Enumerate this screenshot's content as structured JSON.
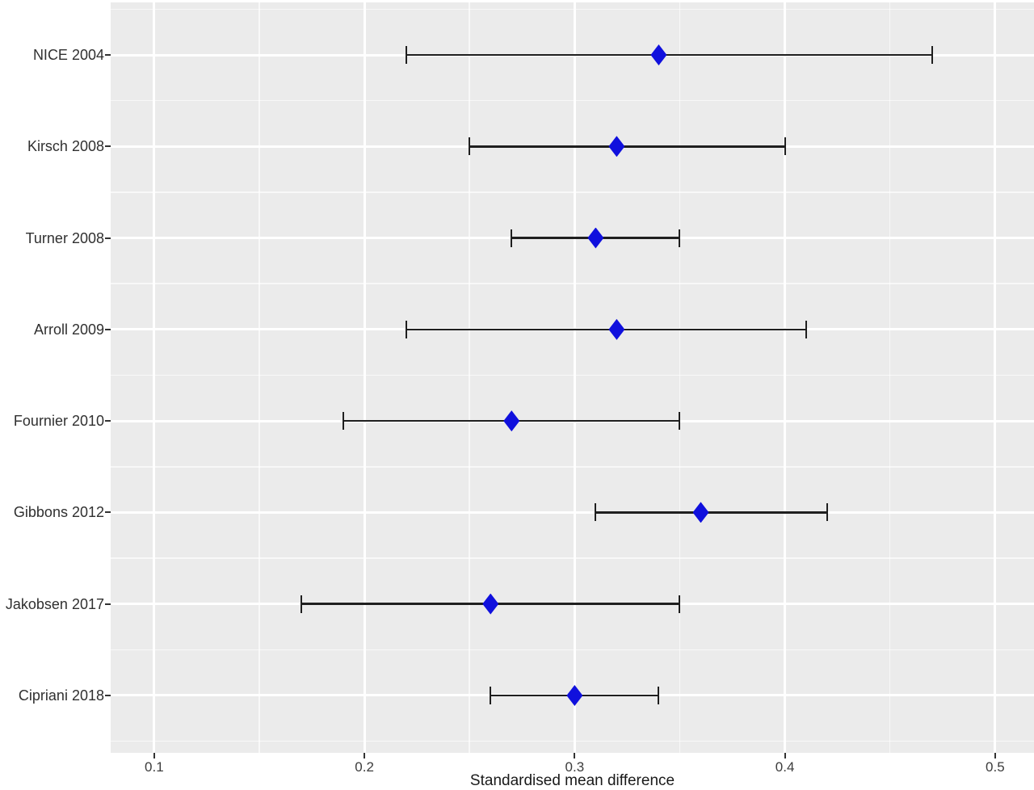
{
  "chart_data": {
    "type": "scatter",
    "subtype": "forest-plot",
    "title": "",
    "xlabel": "Standardised mean difference",
    "ylabel": "",
    "marker": "diamond",
    "legend": "none",
    "grid": "major and minor white gridlines on gray panel",
    "xlim": [
      0.0793,
      0.5185
    ],
    "x_ticks": [
      0.1,
      0.2,
      0.3,
      0.4,
      0.5
    ],
    "x_tick_labels": [
      "0.1",
      "0.2",
      "0.3",
      "0.4",
      "0.5"
    ],
    "x_minor_ticks": [
      0.15,
      0.25,
      0.35,
      0.45
    ],
    "categories": [
      "NICE 2004",
      "Kirsch 2008",
      "Turner 2008",
      "Arroll 2009",
      "Fournier 2010",
      "Gibbons 2012",
      "Jakobsen 2017",
      "Cipriani 2018"
    ],
    "studies": [
      {
        "label": "NICE 2004",
        "smd": 0.34,
        "ci_low": 0.22,
        "ci_high": 0.47
      },
      {
        "label": "Kirsch 2008",
        "smd": 0.32,
        "ci_low": 0.25,
        "ci_high": 0.4
      },
      {
        "label": "Turner 2008",
        "smd": 0.31,
        "ci_low": 0.27,
        "ci_high": 0.35
      },
      {
        "label": "Arroll 2009",
        "smd": 0.32,
        "ci_low": 0.22,
        "ci_high": 0.41
      },
      {
        "label": "Fournier 2010",
        "smd": 0.27,
        "ci_low": 0.19,
        "ci_high": 0.35
      },
      {
        "label": "Gibbons 2012",
        "smd": 0.36,
        "ci_low": 0.31,
        "ci_high": 0.42
      },
      {
        "label": "Jakobsen 2017",
        "smd": 0.26,
        "ci_low": 0.17,
        "ci_high": 0.35
      },
      {
        "label": "Cipriani 2018",
        "smd": 0.3,
        "ci_low": 0.26,
        "ci_high": 0.34
      }
    ],
    "colors": {
      "page_bg": "#FFFFFF",
      "panel_bg": "#EBEBEB",
      "grid_major": "#FFFFFF",
      "grid_minor": "#FFFFFF",
      "marker": "#1010DD",
      "errorbar": "#1F1F1F",
      "axis_text": "#3C3C3C",
      "y_axis_text": "#303030",
      "axis_title": "#1A1A1A",
      "tick_mark": "#333333"
    }
  }
}
